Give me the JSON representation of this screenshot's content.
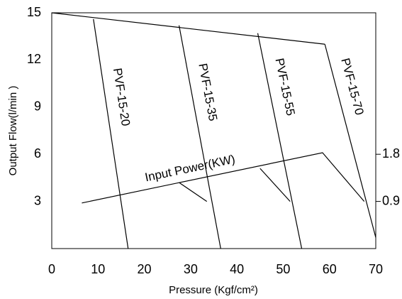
{
  "chart_data": {
    "type": "line",
    "x_label": "Pressure (Kgf/cm²)",
    "y_label": "Output Flow(l/min )",
    "xlim": [
      0,
      70
    ],
    "xticks": [
      0,
      10,
      20,
      30,
      40,
      50,
      60,
      70
    ],
    "ylim": [
      0,
      15
    ],
    "yticks": [
      3,
      6,
      9,
      12,
      15
    ],
    "y2lim": [
      0,
      4.5
    ],
    "y2ticks": [
      0.9,
      1.8
    ],
    "color": "#000000",
    "series": [
      {
        "x": [
          0,
          59
        ],
        "values": [
          15,
          13
        ]
      },
      {
        "name": "PVF-15-20",
        "x": [
          9,
          16.5
        ],
        "values": [
          14.6,
          0
        ]
      },
      {
        "name": "PVF-15-35",
        "x": [
          27.5,
          36.5
        ],
        "values": [
          14.2,
          0
        ]
      },
      {
        "name": "PVF-15-55",
        "x": [
          44.5,
          54
        ],
        "values": [
          13.7,
          0
        ]
      },
      {
        "name": "PVF-15-70",
        "x": [
          59,
          70
        ],
        "values": [
          13,
          0.7
        ]
      },
      {
        "name": "Input Power(KW)",
        "axis": "y2",
        "x": [
          6.5,
          58.5,
          67.5
        ],
        "values": [
          0.87,
          1.83,
          0.9
        ]
      },
      {
        "axis": "y2",
        "x": [
          27.5,
          33.5
        ],
        "values": [
          1.26,
          0.9
        ]
      },
      {
        "axis": "y2",
        "x": [
          45,
          51.5
        ],
        "values": [
          1.53,
          0.9
        ]
      }
    ]
  }
}
